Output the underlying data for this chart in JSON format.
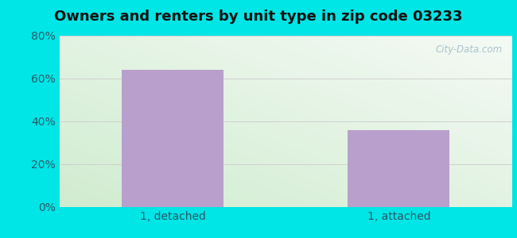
{
  "title": "Owners and renters by unit type in zip code 03233",
  "categories": [
    "1, detached",
    "1, attached"
  ],
  "values": [
    64,
    36
  ],
  "bar_color": "#b9a0cc",
  "bar_width": 0.45,
  "ylim": [
    0,
    80
  ],
  "yticks": [
    0,
    20,
    40,
    60,
    80
  ],
  "ytick_labels": [
    "0%",
    "20%",
    "40%",
    "60%",
    "80%"
  ],
  "background_outer": "#00e5e5",
  "bg_color_topleft": "#e8f5e8",
  "bg_color_topright": "#f0f8f0",
  "bg_color_bottomleft": "#d0ecd0",
  "bg_color_bottomright": "#e8f4f0",
  "grid_color": "#cccccc",
  "title_fontsize": 13,
  "tick_fontsize": 10,
  "tick_color": "#2a5a6a",
  "watermark": "City-Data.com"
}
